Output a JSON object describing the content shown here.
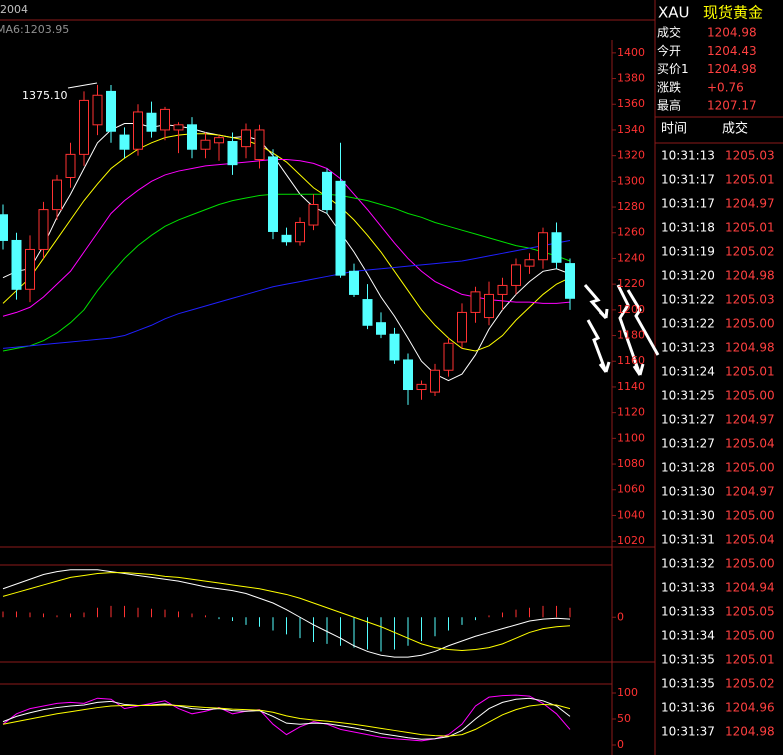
{
  "header": {
    "label": "2004",
    "indicator": "MA6:1203.95"
  },
  "chart_data": [
    {
      "type": "candlestick",
      "annotations": [
        "1375.10"
      ],
      "categories": [
        null,
        null,
        null,
        null,
        null,
        null,
        null,
        null,
        null,
        null,
        null,
        null,
        null,
        null,
        null,
        null,
        null,
        null,
        null,
        null,
        null,
        null,
        null,
        null,
        null,
        null,
        null,
        null,
        null,
        null,
        null,
        null,
        null,
        null,
        null,
        null,
        null,
        null,
        null,
        null,
        null,
        null,
        null
      ],
      "open": [
        1274,
        1254,
        1216,
        1247,
        1278,
        1303,
        1321,
        1344,
        1370,
        1336,
        1325,
        1353,
        1340,
        1340,
        1344,
        1325,
        1330,
        1331,
        1327,
        1317,
        1319,
        1258,
        1253,
        1266,
        1307,
        1300,
        1230,
        1208,
        1190,
        1181,
        1161,
        1138,
        1136,
        1153,
        1175,
        1198,
        1194,
        1212,
        1219,
        1234,
        1239,
        1260,
        1236
      ],
      "high": [
        1282,
        1260,
        1258,
        1284,
        1305,
        1330,
        1370,
        1375.1,
        1375,
        1342,
        1360,
        1362,
        1358,
        1346,
        1350,
        1338,
        1336,
        1338,
        1345,
        1344,
        1325,
        1264,
        1272,
        1290,
        1310,
        1330,
        1236,
        1220,
        1198,
        1186,
        1166,
        1145,
        1158,
        1178,
        1205,
        1218,
        1222,
        1225,
        1240,
        1244,
        1264,
        1268,
        1240
      ],
      "low": [
        1247,
        1208,
        1206,
        1240,
        1270,
        1295,
        1312,
        1336,
        1330,
        1318,
        1320,
        1334,
        1332,
        1322,
        1318,
        1318,
        1316,
        1305,
        1318,
        1310,
        1255,
        1250,
        1250,
        1262,
        1275,
        1225,
        1210,
        1185,
        1178,
        1158,
        1126,
        1130,
        1133,
        1148,
        1170,
        1190,
        1188,
        1200,
        1212,
        1228,
        1232,
        1232,
        1200
      ],
      "close": [
        1254,
        1216,
        1247,
        1278,
        1301,
        1321,
        1363,
        1367,
        1339,
        1325,
        1354,
        1339,
        1356,
        1344,
        1325,
        1332,
        1334,
        1313,
        1340,
        1340,
        1261,
        1253,
        1268,
        1282,
        1278,
        1227,
        1212,
        1188,
        1181,
        1161,
        1138,
        1142,
        1153,
        1174,
        1198,
        1214,
        1212,
        1219,
        1235,
        1239,
        1260,
        1237,
        1209
      ],
      "up_color": "#ff3232",
      "down_color": "#54ffff",
      "series": [
        {
          "color": "#ffffff",
          "values": [
            1225,
            1230,
            1232,
            1250,
            1272,
            1290,
            1310,
            1330,
            1340,
            1345,
            1345,
            1342,
            1344,
            1343,
            1341,
            1338,
            1336,
            1334,
            1335,
            1332,
            1320,
            1305,
            1290,
            1280,
            1275,
            1260,
            1245,
            1228,
            1210,
            1195,
            1178,
            1160,
            1150,
            1145,
            1150,
            1165,
            1185,
            1200,
            1212,
            1222,
            1230,
            1232,
            1228
          ]
        },
        {
          "color": "#ffff00",
          "values": [
            1205,
            1215,
            1225,
            1240,
            1255,
            1270,
            1285,
            1298,
            1310,
            1318,
            1325,
            1330,
            1334,
            1336,
            1337,
            1337,
            1336,
            1334,
            1332,
            1328,
            1322,
            1315,
            1305,
            1295,
            1288,
            1280,
            1270,
            1258,
            1245,
            1230,
            1215,
            1200,
            1188,
            1178,
            1170,
            1168,
            1172,
            1180,
            1192,
            1202,
            1212,
            1220,
            1225
          ]
        },
        {
          "color": "#ff00ff",
          "values": [
            1195,
            1198,
            1202,
            1210,
            1220,
            1230,
            1245,
            1260,
            1275,
            1285,
            1293,
            1300,
            1305,
            1308,
            1310,
            1312,
            1313,
            1314,
            1315,
            1316,
            1317,
            1317,
            1316,
            1314,
            1310,
            1302,
            1290,
            1278,
            1265,
            1252,
            1240,
            1230,
            1222,
            1217,
            1212,
            1210,
            1208,
            1207,
            1206,
            1206,
            1205,
            1205,
            1206
          ]
        },
        {
          "color": "#00e000",
          "values": [
            1168,
            1170,
            1172,
            1176,
            1182,
            1190,
            1200,
            1215,
            1228,
            1240,
            1250,
            1258,
            1265,
            1270,
            1274,
            1278,
            1282,
            1285,
            1287,
            1289,
            1290,
            1290,
            1290,
            1290,
            1290,
            1289,
            1287,
            1285,
            1282,
            1279,
            1275,
            1272,
            1268,
            1265,
            1262,
            1259,
            1256,
            1253,
            1250,
            1248,
            1245,
            1242,
            1238
          ]
        },
        {
          "color": "#2020ff",
          "values": [
            1170,
            1171,
            1172,
            1173,
            1174,
            1175,
            1176,
            1177,
            1178,
            1180,
            1184,
            1188,
            1193,
            1197,
            1200,
            1203,
            1206,
            1209,
            1212,
            1215,
            1218,
            1220,
            1222,
            1224,
            1226,
            1228,
            1230,
            1231,
            1232,
            1233,
            1234,
            1235,
            1236,
            1237,
            1238,
            1240,
            1242,
            1244,
            1246,
            1248,
            1250,
            1252,
            1254
          ]
        }
      ],
      "ylim": [
        1017,
        1410
      ],
      "yticks": [
        1020,
        1040,
        1060,
        1080,
        1100,
        1120,
        1140,
        1160,
        1180,
        1200,
        1220,
        1240,
        1260,
        1280,
        1300,
        1320,
        1340,
        1360,
        1380,
        1400
      ]
    },
    {
      "type": "macd",
      "histogram": [
        6,
        6,
        5,
        4,
        2,
        4,
        5,
        10,
        12,
        12,
        10,
        9,
        8,
        6,
        4,
        2,
        -2,
        -4,
        -8,
        -10,
        -14,
        -18,
        -22,
        -26,
        -28,
        -30,
        -32,
        -34,
        -36,
        -34,
        -30,
        -25,
        -20,
        -14,
        -8,
        -3,
        2,
        5,
        8,
        10,
        12,
        12,
        10
      ],
      "up_color": "#ff3232",
      "down_color": "#54ffff",
      "series": [
        {
          "color": "#ffffff",
          "values": [
            30,
            35,
            40,
            45,
            48,
            50,
            50,
            50,
            48,
            46,
            44,
            42,
            40,
            38,
            35,
            32,
            30,
            28,
            25,
            20,
            15,
            8,
            0,
            -8,
            -15,
            -22,
            -30,
            -36,
            -40,
            -42,
            -42,
            -40,
            -36,
            -30,
            -25,
            -20,
            -16,
            -12,
            -8,
            -4,
            -2,
            -1,
            -2
          ]
        },
        {
          "color": "#ffff00",
          "values": [
            22,
            26,
            30,
            34,
            38,
            42,
            44,
            46,
            47,
            47,
            46,
            45,
            43,
            42,
            40,
            38,
            36,
            34,
            32,
            30,
            27,
            24,
            20,
            15,
            10,
            5,
            0,
            -5,
            -10,
            -16,
            -22,
            -28,
            -32,
            -34,
            -35,
            -34,
            -32,
            -28,
            -22,
            -16,
            -12,
            -10,
            -9
          ]
        }
      ],
      "ylim": [
        -45,
        55
      ],
      "yticks": [
        0
      ]
    },
    {
      "type": "line",
      "series": [
        {
          "color": "#ff00ff",
          "values": [
            40,
            60,
            70,
            75,
            80,
            82,
            80,
            90,
            88,
            70,
            75,
            80,
            85,
            70,
            60,
            65,
            72,
            60,
            65,
            68,
            40,
            20,
            35,
            45,
            40,
            30,
            25,
            20,
            15,
            12,
            10,
            8,
            12,
            20,
            40,
            75,
            92,
            95,
            96,
            94,
            80,
            60,
            30
          ]
        },
        {
          "color": "#ffffff",
          "values": [
            45,
            55,
            62,
            68,
            72,
            75,
            77,
            82,
            84,
            78,
            76,
            77,
            79,
            75,
            70,
            68,
            70,
            66,
            65,
            66,
            55,
            42,
            40,
            42,
            41,
            37,
            33,
            28,
            22,
            18,
            14,
            11,
            12,
            16,
            28,
            50,
            70,
            82,
            88,
            90,
            85,
            75,
            55
          ]
        },
        {
          "color": "#ffff00",
          "values": [
            40,
            45,
            50,
            55,
            60,
            64,
            68,
            72,
            75,
            76,
            76,
            76,
            77,
            76,
            74,
            72,
            71,
            69,
            68,
            67,
            63,
            56,
            51,
            48,
            46,
            43,
            40,
            36,
            32,
            28,
            24,
            20,
            18,
            17,
            20,
            30,
            44,
            58,
            68,
            75,
            78,
            77,
            70
          ]
        }
      ],
      "ylim": [
        0,
        100
      ],
      "yticks": [
        0,
        50,
        100
      ]
    }
  ],
  "quote": {
    "symbol": "XAU",
    "name": "现货黄金",
    "rows": [
      [
        "成交",
        "1204.98"
      ],
      [
        "今开",
        "1204.43"
      ],
      [
        "买价1",
        "1204.98"
      ],
      [
        "涨跌",
        "+0.76"
      ],
      [
        "最高",
        "1207.17"
      ]
    ]
  },
  "trades": {
    "columns": [
      "时间",
      "成交"
    ],
    "rows": [
      [
        "10:31:13",
        "1205.03"
      ],
      [
        "10:31:17",
        "1205.01"
      ],
      [
        "10:31:17",
        "1204.97"
      ],
      [
        "10:31:18",
        "1205.01"
      ],
      [
        "10:31:19",
        "1205.02"
      ],
      [
        "10:31:20",
        "1204.98"
      ],
      [
        "10:31:22",
        "1205.03"
      ],
      [
        "10:31:22",
        "1205.00"
      ],
      [
        "10:31:23",
        "1204.98"
      ],
      [
        "10:31:24",
        "1205.01"
      ],
      [
        "10:31:25",
        "1205.00"
      ],
      [
        "10:31:27",
        "1204.97"
      ],
      [
        "10:31:27",
        "1205.04"
      ],
      [
        "10:31:28",
        "1205.00"
      ],
      [
        "10:31:30",
        "1204.97"
      ],
      [
        "10:31:30",
        "1205.00"
      ],
      [
        "10:31:31",
        "1205.04"
      ],
      [
        "10:31:32",
        "1205.00"
      ],
      [
        "10:31:33",
        "1204.94"
      ],
      [
        "10:31:33",
        "1205.05"
      ],
      [
        "10:31:34",
        "1205.00"
      ],
      [
        "10:31:35",
        "1205.01"
      ],
      [
        "10:31:35",
        "1205.02"
      ],
      [
        "10:31:36",
        "1204.96"
      ],
      [
        "10:31:37",
        "1204.98"
      ]
    ]
  }
}
